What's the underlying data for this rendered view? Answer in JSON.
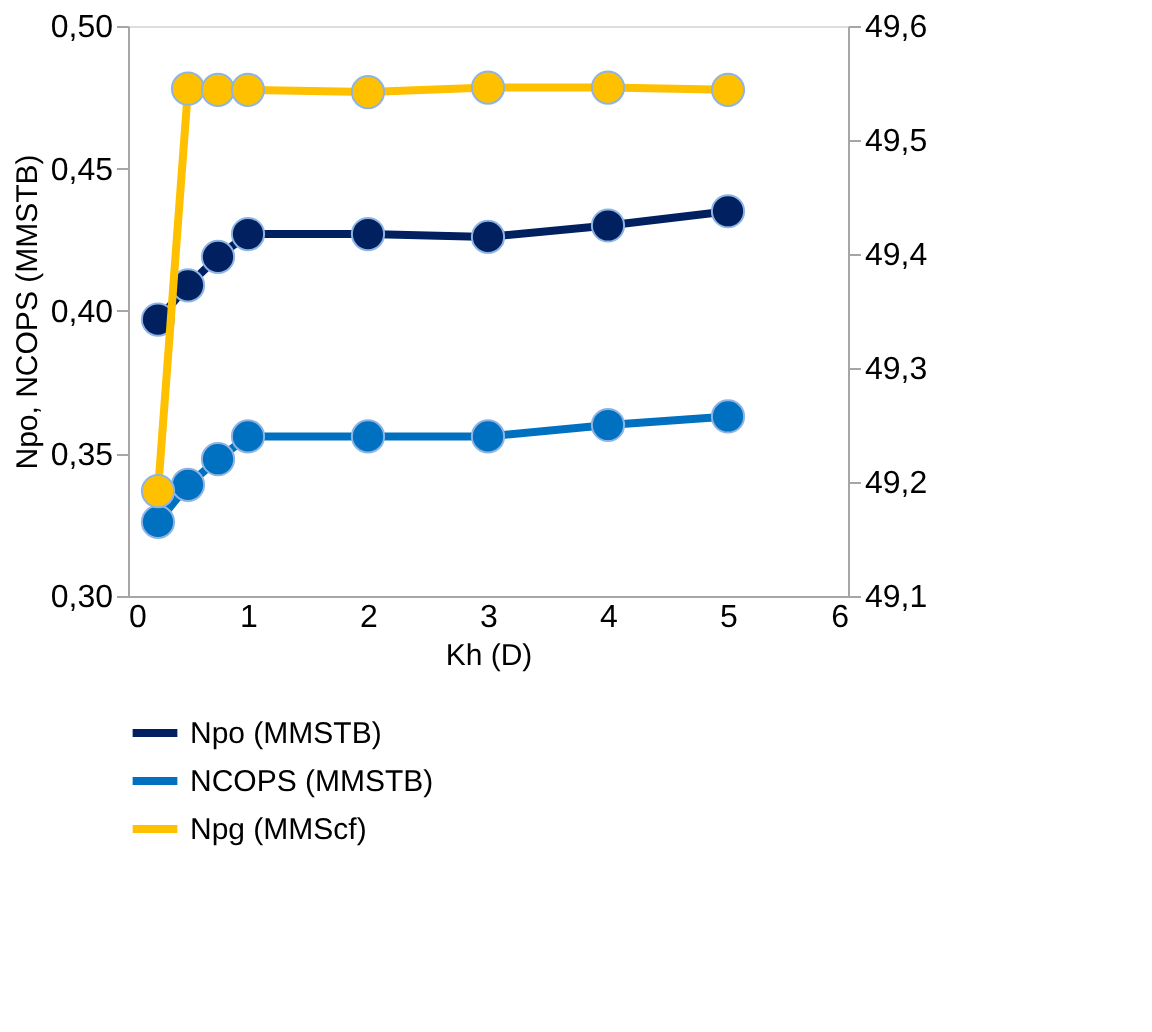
{
  "chart_data": {
    "type": "line",
    "xlabel": "Kh (D)",
    "ylabel": "Npo, NCOPS (MMSTB)",
    "x": [
      0.25,
      0.5,
      0.75,
      1,
      2,
      3,
      4,
      5
    ],
    "series": [
      {
        "name": "Npo (MMSTB)",
        "color": "#002060",
        "values": [
          0.397,
          0.409,
          0.419,
          0.427,
          0.427,
          0.426,
          0.43,
          0.435
        ]
      },
      {
        "name": "NCOPS (MMSTB)",
        "color": "#0070c0",
        "values": [
          0.326,
          0.339,
          0.348,
          0.356,
          0.356,
          0.356,
          0.36,
          0.363
        ]
      },
      {
        "name": "Npg (MMScf)",
        "color": "#ffc000",
        "axis": "y2",
        "values": [
          49.192,
          49.545,
          49.544,
          49.544,
          49.542,
          49.546,
          49.546,
          49.544
        ]
      }
    ],
    "xlim": [
      0,
      6
    ],
    "xticks": [
      0,
      1,
      2,
      3,
      4,
      5,
      6
    ],
    "ylim": [
      0.3,
      0.5
    ],
    "yticks": [
      {
        "value": 0.3,
        "label": "0,30"
      },
      {
        "value": 0.35,
        "label": "0,35"
      },
      {
        "value": 0.4,
        "label": "0,40"
      },
      {
        "value": 0.45,
        "label": "0,45"
      },
      {
        "value": 0.5,
        "label": "0,50"
      }
    ],
    "y2lim": [
      49.1,
      49.6
    ],
    "y2ticks": [
      {
        "value": 49.1,
        "label": "49,1"
      },
      {
        "value": 49.2,
        "label": "49,2"
      },
      {
        "value": 49.3,
        "label": "49,3"
      },
      {
        "value": 49.4,
        "label": "49,4"
      },
      {
        "value": 49.5,
        "label": "49,5"
      },
      {
        "value": 49.6,
        "label": "49,6"
      }
    ],
    "grid": false,
    "legend": "bottom",
    "marker": "circle",
    "line_style": "solid"
  }
}
